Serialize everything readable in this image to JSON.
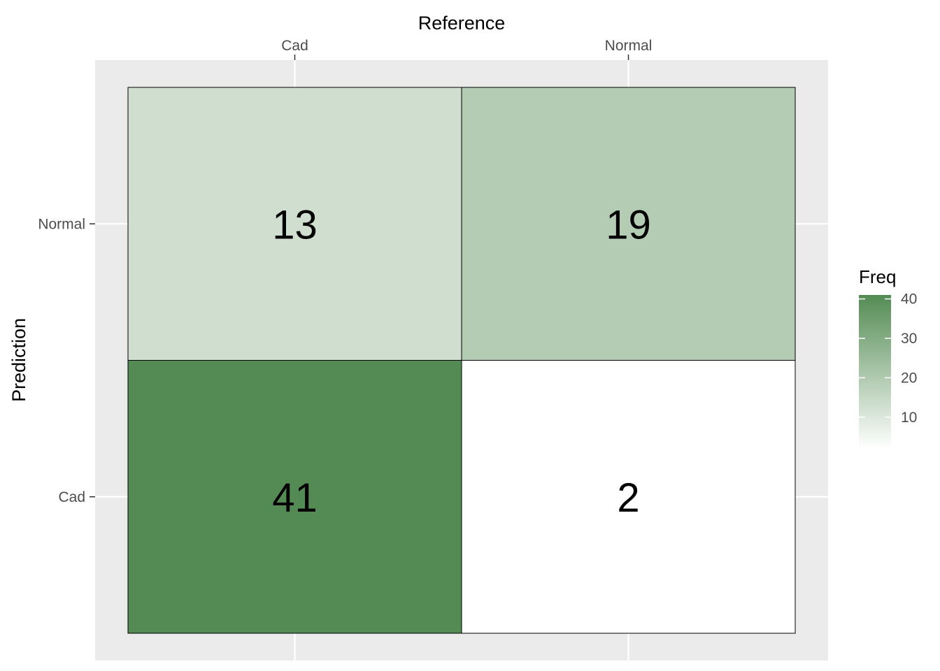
{
  "chart_data": {
    "type": "heatmap",
    "xlabel": "Reference",
    "ylabel": "Prediction",
    "x_categories": [
      "Cad",
      "Normal"
    ],
    "y_categories": [
      "Cad",
      "Normal"
    ],
    "cells": [
      {
        "x": "Cad",
        "y": "Normal",
        "value": 13,
        "label": "13"
      },
      {
        "x": "Normal",
        "y": "Normal",
        "value": 19,
        "label": "19"
      },
      {
        "x": "Cad",
        "y": "Cad",
        "value": 41,
        "label": "41"
      },
      {
        "x": "Normal",
        "y": "Cad",
        "value": 2,
        "label": "2"
      }
    ],
    "x_axis_position": "top",
    "legend": {
      "title": "Freq",
      "placement": "right",
      "ticks": [
        10,
        20,
        30,
        40
      ],
      "tick_labels": [
        "10",
        "20",
        "30",
        "40"
      ],
      "range": [
        2,
        41
      ],
      "color_low": "#ffffff",
      "color_high": "#548b54"
    },
    "grid": true,
    "panel_background": "#ebebeb",
    "gridline_color": "#ffffff",
    "cell_border_color": "#000000"
  }
}
